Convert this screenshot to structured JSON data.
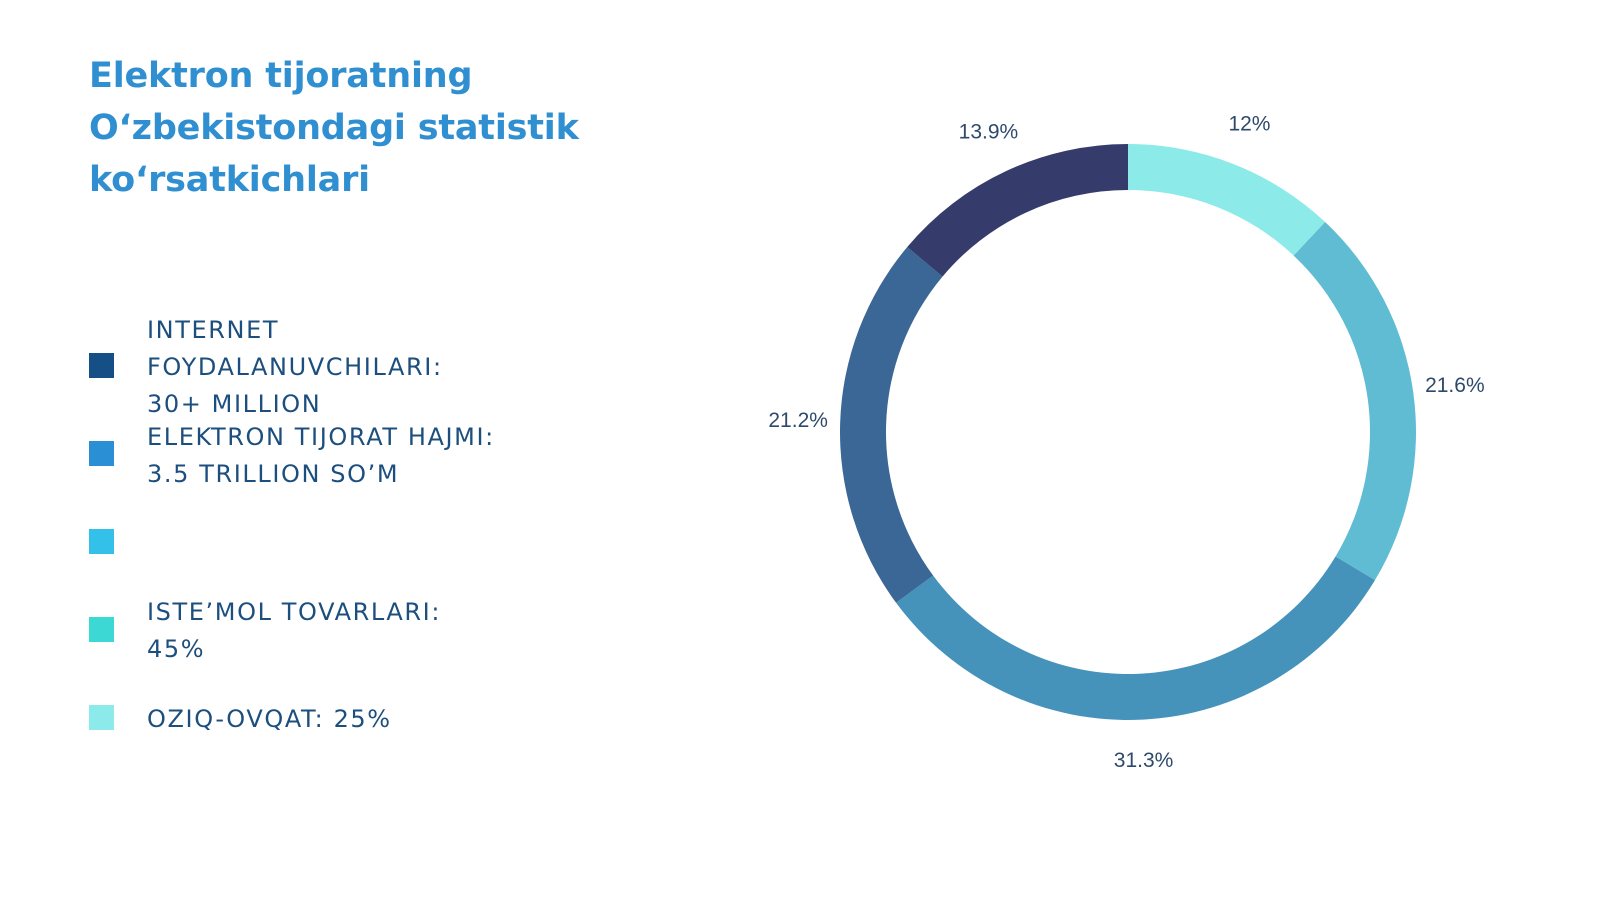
{
  "title_lines": [
    "Elektron tijoratning",
    "O‘zbekistondagi statistik",
    "ko‘rsatkichlari"
  ],
  "legend": [
    {
      "color": "#154f86",
      "lines": [
        "INTERNET",
        "FOYDALANUVCHILARI:",
        "30+ MILLION"
      ]
    },
    {
      "color": "#2a8fd4",
      "lines": [
        "ELEKTRON TIJORAT HAJMI:",
        "3.5 TRILLION SO’M"
      ]
    },
    {
      "color": "#33c1ea",
      "lines": []
    },
    {
      "color": "#3bd8d4",
      "lines": [
        "ISTE’MOL TOVARLARI:",
        "45%"
      ]
    },
    {
      "color": "#8ceaea",
      "lines": [
        "OZIQ-OVQAT: 25%"
      ]
    }
  ],
  "chart_data": {
    "type": "pie",
    "donut": true,
    "start": "top, clockwise",
    "slices": [
      {
        "value": 12.0,
        "label": "12%",
        "color": "#8ceae8"
      },
      {
        "value": 21.6,
        "label": "21.6%",
        "color": "#5fbcd3"
      },
      {
        "value": 31.3,
        "label": "31.3%",
        "color": "#4592bb"
      },
      {
        "value": 21.2,
        "label": "21.2%",
        "color": "#3a6796"
      },
      {
        "value": 13.9,
        "label": "13.9%",
        "color": "#353c6c"
      }
    ]
  }
}
